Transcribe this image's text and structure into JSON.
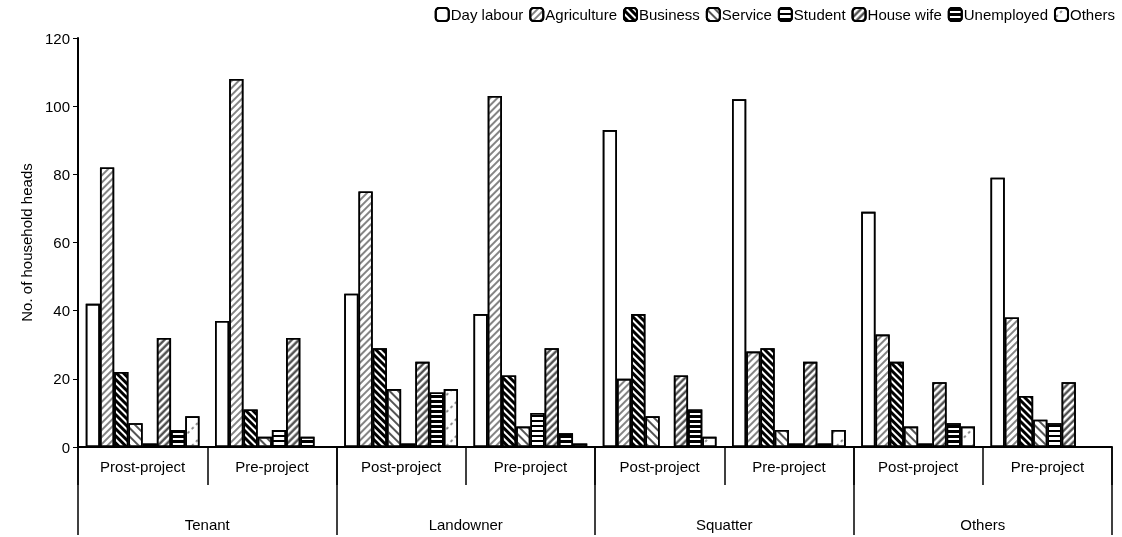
{
  "chart_data": {
    "type": "bar",
    "ylabel": "No. of household heads",
    "categories": [
      "Prost-project",
      "Pre-project",
      "Post-project",
      "Pre-project",
      "Post-project",
      "Pre-project",
      "Post-project",
      "Pre-project"
    ],
    "annotations": [
      "Tenant",
      "Landowner",
      "Squatter",
      "Others"
    ],
    "series": [
      {
        "name": "Day labour",
        "color": "#ffffff",
        "values": [
          42,
          37,
          45,
          39,
          93,
          102,
          69,
          79
        ]
      },
      {
        "name": "Agriculture",
        "color": "#ffffff",
        "values": [
          82,
          108,
          75,
          103,
          20,
          28,
          33,
          38
        ]
      },
      {
        "name": "Business",
        "color": "#ffffff",
        "values": [
          22,
          11,
          29,
          21,
          39,
          29,
          25,
          15
        ]
      },
      {
        "name": "Service",
        "color": "#ffffff",
        "values": [
          7,
          3,
          17,
          6,
          9,
          5,
          6,
          8
        ]
      },
      {
        "name": "Student",
        "color": "#ffffff",
        "values": [
          1,
          5,
          1,
          10,
          0,
          1,
          1,
          7
        ]
      },
      {
        "name": "House wife",
        "color": "#ffffff",
        "values": [
          32,
          32,
          25,
          29,
          21,
          25,
          19,
          19
        ]
      },
      {
        "name": "Unemployed",
        "color": "#ffffff",
        "values": [
          5,
          3,
          16,
          4,
          11,
          1,
          7,
          0
        ]
      },
      {
        "name": "Others",
        "color": "#ffffff",
        "values": [
          9,
          0,
          17,
          1,
          3,
          5,
          6,
          0
        ]
      }
    ],
    "ylim": [
      0,
      120
    ],
    "yticks": [
      0,
      20,
      40,
      60,
      80,
      100,
      120
    ],
    "grid": false,
    "legend": "top right"
  }
}
